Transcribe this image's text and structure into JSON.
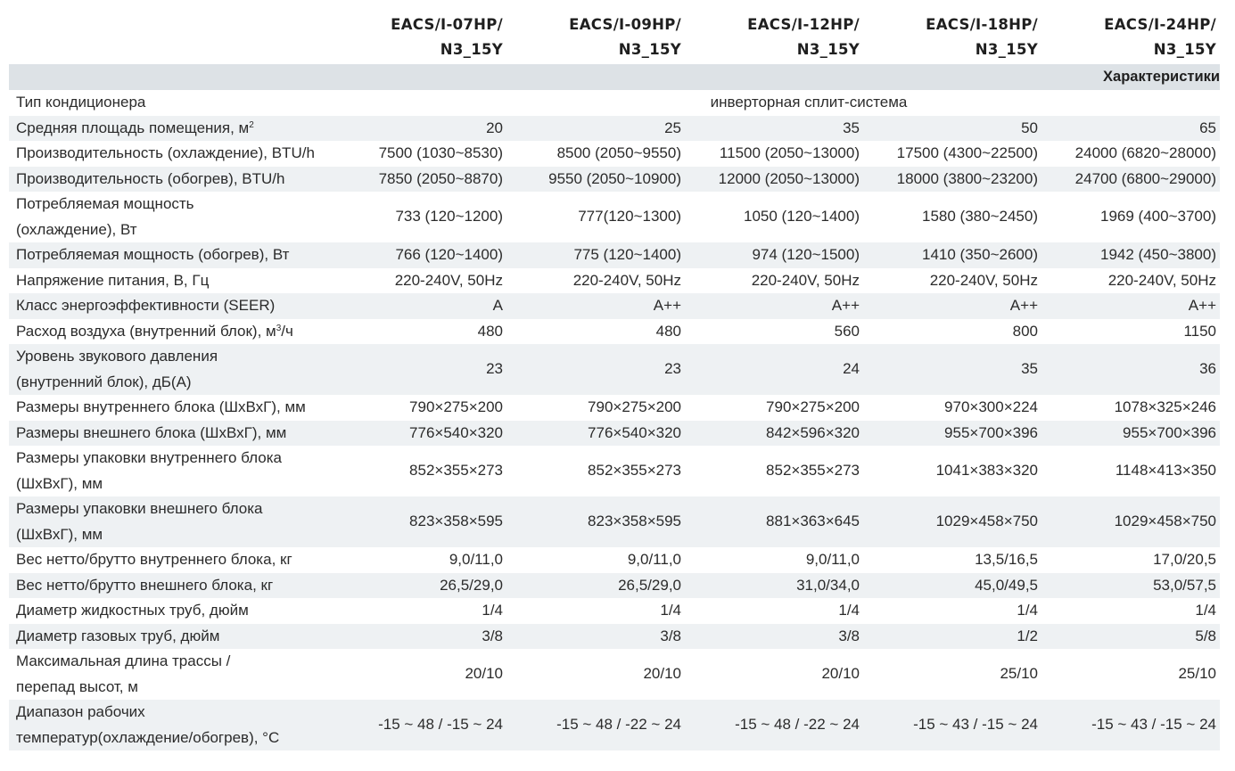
{
  "columns": [
    {
      "line1": "EACS/I-07HP/",
      "line2": "N3_15Y"
    },
    {
      "line1": "EACS/I-09HP/",
      "line2": "N3_15Y"
    },
    {
      "line1": "EACS/I-12HP/",
      "line2": "N3_15Y"
    },
    {
      "line1": "EACS/I-18HP/",
      "line2": "N3_15Y"
    },
    {
      "line1": "EACS/I-24HP/",
      "line2": "N3_15Y"
    }
  ],
  "section_title": "Характеристики",
  "type_row": {
    "label": "Тип кондиционера",
    "value": "инверторная сплит-система"
  },
  "rows": [
    {
      "label_a": "Средняя площадь помещения, м",
      "sup": "2",
      "label_b": "",
      "values": [
        "20",
        "25",
        "35",
        "50",
        "65"
      ]
    },
    {
      "label_a": "Производительность (охлаждение), BTU/h",
      "values": [
        "7500 (1030~8530)",
        "8500 (2050~9550)",
        "11500 (2050~13000)",
        "17500 (4300~22500)",
        "24000 (6820~28000)"
      ]
    },
    {
      "label_a": "Производительность (обогрев), BTU/h",
      "values": [
        "7850 (2050~8870)",
        "9550 (2050~10900)",
        "12000 (2050~13000)",
        "18000 (3800~23200)",
        "24700 (6800~29000)"
      ]
    },
    {
      "label_a": "Потребляемая мощность",
      "label_line2": "(охлаждение), Вт",
      "values": [
        "733 (120~1200)",
        "777(120~1300)",
        "1050 (120~1400)",
        "1580 (380~2450)",
        "1969 (400~3700)"
      ]
    },
    {
      "label_a": "Потребляемая мощность (обогрев), Вт",
      "values": [
        "766 (120~1400)",
        "775 (120~1400)",
        "974 (120~1500)",
        "1410 (350~2600)",
        "1942 (450~3800)"
      ]
    },
    {
      "label_a": "Напряжение питания, В, Гц",
      "values": [
        "220-240V, 50Hz",
        "220-240V, 50Hz",
        "220-240V, 50Hz",
        "220-240V, 50Hz",
        "220-240V, 50Hz"
      ]
    },
    {
      "label_a": "Класс энергоэффективности (SEER)",
      "values": [
        "A",
        "A++",
        "A++",
        "A++",
        "A++"
      ]
    },
    {
      "label_a": "Расход воздуха (внутренний блок), м",
      "sup": "3",
      "label_b": "/ч",
      "values": [
        "480",
        "480",
        "560",
        "800",
        "1150"
      ]
    },
    {
      "label_a": "Уровень звукового давления",
      "label_line2": "(внутренний блок), дБ(А)",
      "values": [
        "23",
        "23",
        "24",
        "35",
        "36"
      ]
    },
    {
      "label_a": "Размеры внутреннего блока (ШхВхГ), мм",
      "values": [
        "790×275×200",
        "790×275×200",
        "790×275×200",
        "970×300×224",
        "1078×325×246"
      ]
    },
    {
      "label_a": "Размеры внешнего блока (ШхВхГ), мм",
      "values": [
        "776×540×320",
        "776×540×320",
        "842×596×320",
        "955×700×396",
        "955×700×396"
      ]
    },
    {
      "label_a": "Размеры упаковки внутреннего блока",
      "label_line2": "(ШхВхГ), мм",
      "values": [
        "852×355×273",
        "852×355×273",
        "852×355×273",
        "1041×383×320",
        "1148×413×350"
      ]
    },
    {
      "label_a": "Размеры упаковки внешнего блока",
      "label_line2": "(ШхВхГ), мм",
      "values": [
        "823×358×595",
        "823×358×595",
        "881×363×645",
        "1029×458×750",
        "1029×458×750"
      ]
    },
    {
      "label_a": "Вес нетто/брутто внутреннего блока, кг",
      "values": [
        "9,0/11,0",
        "9,0/11,0",
        "9,0/11,0",
        "13,5/16,5",
        "17,0/20,5"
      ]
    },
    {
      "label_a": "Вес нетто/брутто внешнего блока, кг",
      "values": [
        "26,5/29,0",
        "26,5/29,0",
        "31,0/34,0",
        "45,0/49,5",
        "53,0/57,5"
      ]
    },
    {
      "label_a": "Диаметр жидкостных труб, дюйм",
      "values": [
        "1/4",
        "1/4",
        "1/4",
        "1/4",
        "1/4"
      ]
    },
    {
      "label_a": "Диаметр газовых труб, дюйм",
      "values": [
        "3/8",
        "3/8",
        "3/8",
        "1/2",
        "5/8"
      ]
    },
    {
      "label_a": "Максимальная длина трассы /",
      "label_line2": "перепад высот, м",
      "values": [
        "20/10",
        "20/10",
        "20/10",
        "25/10",
        "25/10"
      ]
    },
    {
      "label_a": "Диапазон рабочих",
      "label_line2": "температур(охлаждение/обогрев), °С",
      "values": [
        "-15 ~ 48 / -15 ~ 24",
        "-15 ~ 48 / -22 ~ 24",
        "-15 ~ 48 / -22 ~ 24",
        "-15 ~ 43 / -15 ~ 24",
        "-15 ~ 43 / -15 ~ 24"
      ]
    }
  ]
}
